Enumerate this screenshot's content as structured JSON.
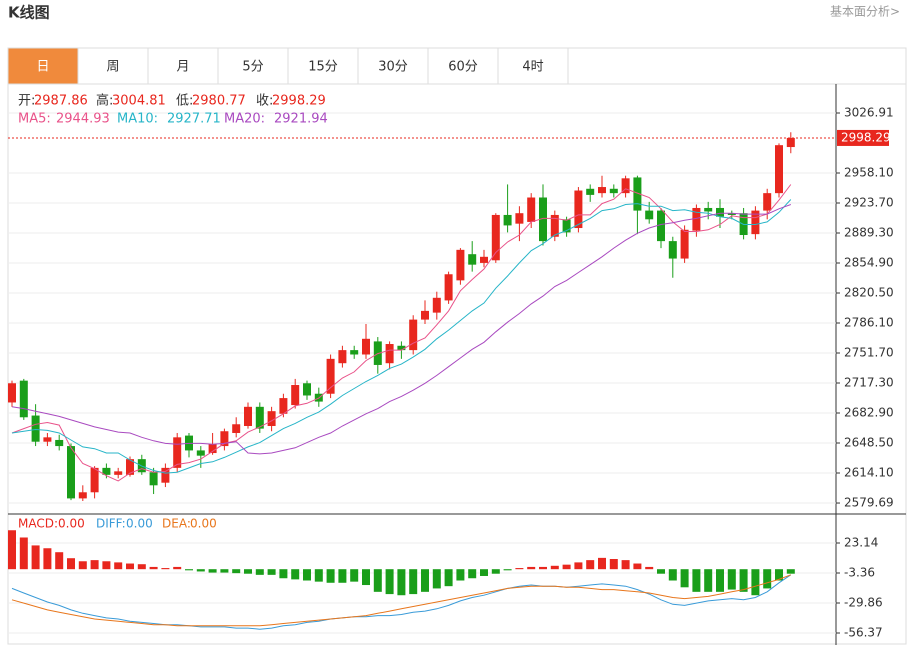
{
  "header": {
    "title": "K线图",
    "link": "基本面分析>"
  },
  "tabs": [
    "日",
    "周",
    "月",
    "5分",
    "15分",
    "30分",
    "60分",
    "4时"
  ],
  "active_tab": 0,
  "chart_data": {
    "type": "candlestick",
    "info_labels": [
      "开:",
      "高:",
      "低:",
      "收:"
    ],
    "up_color": "#e8271e",
    "down_color": "#1a9e1a",
    "ylim": [
      2568.25,
      3059.0
    ],
    "yticks": [
      3026.91,
      {
        "value": 2958.1,
        "label": "2958.10"
      },
      {
        "value": 2923.7,
        "label": "2923.70"
      },
      {
        "value": 2889.3,
        "label": "2889.30"
      },
      {
        "value": 2854.9,
        "label": "2854.90"
      },
      {
        "value": 2820.5,
        "label": "2820.50"
      },
      {
        "value": 2786.1,
        "label": "2786.10"
      },
      {
        "value": 2751.7,
        "label": "2751.70"
      },
      {
        "value": 2717.3,
        "label": "2717.30"
      },
      {
        "value": 2682.9,
        "label": "2682.90"
      },
      {
        "value": 2648.5,
        "label": "2648.50"
      },
      {
        "value": 2614.1,
        "label": "2614.10"
      },
      2579.69
    ],
    "grid": true,
    "candles": [
      {
        "o": 2695,
        "h": 2720,
        "l": 2690,
        "c": 2717
      },
      {
        "o": 2720,
        "h": 2722,
        "l": 2675,
        "c": 2678
      },
      {
        "o": 2680,
        "h": 2693,
        "l": 2645,
        "c": 2650
      },
      {
        "o": 2650,
        "h": 2660,
        "l": 2645,
        "c": 2655
      },
      {
        "o": 2652,
        "h": 2658,
        "l": 2640,
        "c": 2645
      },
      {
        "o": 2645,
        "h": 2648,
        "l": 2583,
        "c": 2585
      },
      {
        "o": 2585,
        "h": 2600,
        "l": 2582,
        "c": 2592
      },
      {
        "o": 2592,
        "h": 2622,
        "l": 2585,
        "c": 2620
      },
      {
        "o": 2620,
        "h": 2625,
        "l": 2608,
        "c": 2612
      },
      {
        "o": 2612,
        "h": 2620,
        "l": 2608,
        "c": 2616
      },
      {
        "o": 2612,
        "h": 2633,
        "l": 2610,
        "c": 2630
      },
      {
        "o": 2630,
        "h": 2635,
        "l": 2612,
        "c": 2615
      },
      {
        "o": 2615,
        "h": 2620,
        "l": 2590,
        "c": 2600
      },
      {
        "o": 2603,
        "h": 2625,
        "l": 2598,
        "c": 2620
      },
      {
        "o": 2620,
        "h": 2660,
        "l": 2615,
        "c": 2655
      },
      {
        "o": 2657,
        "h": 2660,
        "l": 2632,
        "c": 2640
      },
      {
        "o": 2640,
        "h": 2645,
        "l": 2620,
        "c": 2634
      },
      {
        "o": 2637,
        "h": 2660,
        "l": 2635,
        "c": 2647
      },
      {
        "o": 2645,
        "h": 2665,
        "l": 2640,
        "c": 2662
      },
      {
        "o": 2660,
        "h": 2678,
        "l": 2655,
        "c": 2670
      },
      {
        "o": 2668,
        "h": 2695,
        "l": 2665,
        "c": 2690
      },
      {
        "o": 2690,
        "h": 2695,
        "l": 2660,
        "c": 2665
      },
      {
        "o": 2668,
        "h": 2690,
        "l": 2662,
        "c": 2685
      },
      {
        "o": 2682,
        "h": 2705,
        "l": 2678,
        "c": 2700
      },
      {
        "o": 2692,
        "h": 2722,
        "l": 2688,
        "c": 2715
      },
      {
        "o": 2717,
        "h": 2720,
        "l": 2698,
        "c": 2703
      },
      {
        "o": 2705,
        "h": 2712,
        "l": 2690,
        "c": 2696
      },
      {
        "o": 2705,
        "h": 2750,
        "l": 2700,
        "c": 2745
      },
      {
        "o": 2740,
        "h": 2760,
        "l": 2735,
        "c": 2755
      },
      {
        "o": 2755,
        "h": 2760,
        "l": 2745,
        "c": 2750
      },
      {
        "o": 2750,
        "h": 2785,
        "l": 2745,
        "c": 2768
      },
      {
        "o": 2765,
        "h": 2770,
        "l": 2728,
        "c": 2738
      },
      {
        "o": 2740,
        "h": 2765,
        "l": 2733,
        "c": 2762
      },
      {
        "o": 2760,
        "h": 2765,
        "l": 2745,
        "c": 2755
      },
      {
        "o": 2755,
        "h": 2795,
        "l": 2750,
        "c": 2790
      },
      {
        "o": 2790,
        "h": 2812,
        "l": 2785,
        "c": 2800
      },
      {
        "o": 2798,
        "h": 2822,
        "l": 2790,
        "c": 2815
      },
      {
        "o": 2812,
        "h": 2845,
        "l": 2808,
        "c": 2842
      },
      {
        "o": 2835,
        "h": 2872,
        "l": 2830,
        "c": 2870
      },
      {
        "o": 2865,
        "h": 2880,
        "l": 2845,
        "c": 2853
      },
      {
        "o": 2855,
        "h": 2870,
        "l": 2850,
        "c": 2862
      },
      {
        "o": 2858,
        "h": 2912,
        "l": 2855,
        "c": 2910
      },
      {
        "o": 2910,
        "h": 2945,
        "l": 2890,
        "c": 2898
      },
      {
        "o": 2900,
        "h": 2920,
        "l": 2880,
        "c": 2912
      },
      {
        "o": 2902,
        "h": 2935,
        "l": 2895,
        "c": 2930
      },
      {
        "o": 2930,
        "h": 2945,
        "l": 2875,
        "c": 2880
      },
      {
        "o": 2885,
        "h": 2915,
        "l": 2880,
        "c": 2910
      },
      {
        "o": 2905,
        "h": 2908,
        "l": 2885,
        "c": 2890
      },
      {
        "o": 2895,
        "h": 2942,
        "l": 2890,
        "c": 2938
      },
      {
        "o": 2940,
        "h": 2945,
        "l": 2925,
        "c": 2933
      },
      {
        "o": 2935,
        "h": 2955,
        "l": 2930,
        "c": 2942
      },
      {
        "o": 2940,
        "h": 2945,
        "l": 2930,
        "c": 2935
      },
      {
        "o": 2935,
        "h": 2955,
        "l": 2930,
        "c": 2952
      },
      {
        "o": 2953,
        "h": 2955,
        "l": 2888,
        "c": 2915
      },
      {
        "o": 2915,
        "h": 2925,
        "l": 2900,
        "c": 2905
      },
      {
        "o": 2915,
        "h": 2918,
        "l": 2872,
        "c": 2880
      },
      {
        "o": 2880,
        "h": 2885,
        "l": 2838,
        "c": 2860
      },
      {
        "o": 2860,
        "h": 2898,
        "l": 2855,
        "c": 2893
      },
      {
        "o": 2892,
        "h": 2922,
        "l": 2885,
        "c": 2918
      },
      {
        "o": 2918,
        "h": 2925,
        "l": 2905,
        "c": 2914
      },
      {
        "o": 2918,
        "h": 2928,
        "l": 2895,
        "c": 2908
      },
      {
        "o": 2912,
        "h": 2915,
        "l": 2905,
        "c": 2910
      },
      {
        "o": 2912,
        "h": 2918,
        "l": 2882,
        "c": 2887
      },
      {
        "o": 2888,
        "h": 2920,
        "l": 2882,
        "c": 2915
      },
      {
        "o": 2915,
        "h": 2940,
        "l": 2905,
        "c": 2935
      },
      {
        "o": 2935,
        "h": 2992,
        "l": 2930,
        "c": 2990
      },
      {
        "o": 2987.86,
        "h": 3004.81,
        "l": 2980.77,
        "c": 2998.29
      }
    ],
    "series": [
      {
        "name": "MA5:",
        "color": "#e9538a",
        "values": [
          2660,
          2665,
          2670,
          2672,
          2669,
          2643,
          2625,
          2619,
          2611,
          2605,
          2614,
          2619,
          2615,
          2616,
          2624,
          2626,
          2630,
          2639,
          2648,
          2651,
          2661,
          2667,
          2674,
          2682,
          2691,
          2694,
          2700,
          2712,
          2723,
          2730,
          2743,
          2751,
          2755,
          2755,
          2763,
          2769,
          2784,
          2800,
          2823,
          2836,
          2848,
          2867,
          2879,
          2887,
          2902,
          2906,
          2906,
          2904,
          2910,
          2910,
          2923,
          2928,
          2940,
          2935,
          2930,
          2917,
          2902,
          2891,
          2891,
          2893,
          2899,
          2909,
          2907,
          2907,
          2911,
          2927,
          2944.93
        ]
      },
      {
        "name": "MA10:",
        "color": "#27b5c8",
        "values": [
          2660,
          2662,
          2664,
          2663,
          2660,
          2652,
          2644,
          2642,
          2637,
          2637,
          2629,
          2622,
          2617,
          2614,
          2615,
          2620,
          2625,
          2627,
          2632,
          2638,
          2644,
          2649,
          2657,
          2665,
          2671,
          2678,
          2684,
          2693,
          2703,
          2711,
          2719,
          2726,
          2734,
          2739,
          2747,
          2756,
          2768,
          2778,
          2789,
          2800,
          2809,
          2826,
          2840,
          2855,
          2869,
          2877,
          2887,
          2892,
          2899,
          2906,
          2915,
          2917,
          2922,
          2923,
          2920,
          2920,
          2915,
          2916,
          2913,
          2912,
          2908,
          2906,
          2899,
          2899,
          2902,
          2913,
          2927.71
        ]
      },
      {
        "name": "MA20:",
        "color": "#a94ac0",
        "values": [
          2690,
          2688,
          2685,
          2682,
          2679,
          2675,
          2671,
          2667,
          2664,
          2661,
          2660,
          2655,
          2651,
          2648,
          2647,
          2648,
          2648,
          2647,
          2648,
          2650,
          2637,
          2636,
          2637,
          2640,
          2643,
          2649,
          2655,
          2660,
          2668,
          2675,
          2682,
          2688,
          2696,
          2702,
          2709,
          2717,
          2726,
          2736,
          2746,
          2756,
          2764,
          2776,
          2787,
          2797,
          2808,
          2817,
          2828,
          2835,
          2844,
          2853,
          2862,
          2872,
          2881,
          2889,
          2895,
          2899,
          2901,
          2904,
          2906,
          2909,
          2912,
          2912,
          2911,
          2911,
          2911,
          2917,
          2921.94
        ]
      }
    ],
    "macd": {
      "name": "MACD:",
      "legend_value": "0.00",
      "color": "#e8271e",
      "ylim": [
        -66.97,
        47.87
      ],
      "yticks": [
        23.14,
        -3.36,
        -29.86,
        -56.37
      ],
      "values": [
        34.4,
        28,
        21,
        18.5,
        15,
        9.7,
        7,
        8,
        7,
        6,
        5,
        4.4,
        2,
        1,
        2,
        -1,
        -2,
        -3,
        -3,
        -3.5,
        -4,
        -5,
        -5,
        -8,
        -9,
        -10,
        -11,
        -12,
        -12,
        -11,
        -14,
        -20,
        -22,
        -23,
        -22,
        -20,
        -17,
        -15,
        -10,
        -8,
        -6,
        -4,
        -1,
        1,
        2,
        2,
        3,
        4,
        6,
        8,
        10,
        9,
        8,
        5,
        2,
        -4,
        -10,
        -16,
        -20,
        -20,
        -20,
        -18,
        -20,
        -23,
        -17,
        -10,
        -4
      ],
      "lines": [
        {
          "name": "DIFF:",
          "legend_value": "0.00",
          "color": "#3a9bd8",
          "values": [
            -17,
            -21,
            -25,
            -29,
            -32,
            -36,
            -39,
            -41,
            -43,
            -44,
            -46,
            -47,
            -48,
            -49,
            -49,
            -50,
            -51,
            -51,
            -51,
            -52,
            -52,
            -53,
            -52,
            -50,
            -49,
            -47,
            -46,
            -44,
            -43,
            -42,
            -42,
            -41,
            -41,
            -40,
            -38,
            -37,
            -35,
            -32,
            -28,
            -25,
            -23,
            -20,
            -17,
            -15,
            -14,
            -15,
            -15,
            -16,
            -15,
            -14,
            -13,
            -14,
            -15,
            -18,
            -22,
            -27,
            -31,
            -32,
            -30,
            -28,
            -27,
            -26,
            -27,
            -25,
            -20,
            -12,
            -5
          ]
        },
        {
          "name": "DEA:",
          "legend_value": "0.00",
          "color": "#e8761c",
          "values": [
            -27,
            -30,
            -33,
            -36,
            -38,
            -40,
            -42,
            -44,
            -45,
            -46,
            -47,
            -48,
            -49,
            -49,
            -50,
            -50,
            -50,
            -50,
            -50,
            -50,
            -50,
            -50,
            -49,
            -48,
            -47,
            -46,
            -45,
            -44,
            -43,
            -42,
            -41,
            -39,
            -37,
            -35,
            -33,
            -31,
            -29,
            -27,
            -25,
            -23,
            -21,
            -19,
            -17,
            -16,
            -15,
            -15,
            -15,
            -16,
            -16,
            -17,
            -18,
            -18,
            -19,
            -20,
            -21,
            -23,
            -25,
            -26,
            -25,
            -24,
            -22,
            -20,
            -18,
            -15,
            -12,
            -9,
            -5
          ]
        }
      ]
    }
  }
}
